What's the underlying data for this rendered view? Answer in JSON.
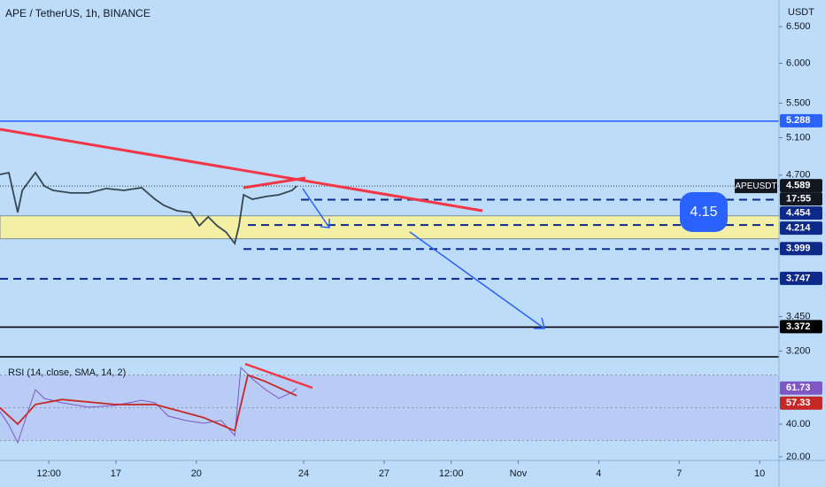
{
  "chart_data": [
    {
      "type": "line",
      "title": "APE / TetherUS, 1h, BINANCE",
      "axis_unit": "USDT",
      "symbol": "APEUSDT",
      "countdown": "17:55",
      "annotation": "4.15",
      "log_scale": true,
      "xlim": [
        12.68,
        41.72
      ],
      "ylim": [
        3.16,
        6.89
      ],
      "yticks": [
        {
          "value": 6.5,
          "label": "6.500"
        },
        {
          "value": 6,
          "label": "6.000"
        },
        {
          "value": 5.5,
          "label": "5.500"
        },
        {
          "value": 5.1,
          "label": "5.100"
        },
        {
          "value": 4.7,
          "label": "4.700"
        },
        {
          "value": 3.45,
          "label": "3.450"
        },
        {
          "value": 3.2,
          "label": "3.200"
        }
      ],
      "xticks": [
        {
          "value": 14.5,
          "label": "12:00"
        },
        17,
        20,
        24,
        27,
        {
          "value": 29.5,
          "label": "12:00"
        },
        {
          "value": 32,
          "label": "Nov"
        },
        {
          "value": 35,
          "label": "4"
        },
        {
          "value": 38,
          "label": "7"
        },
        {
          "value": 41,
          "label": "10"
        }
      ],
      "x": [
        12.68,
        13.01,
        13.34,
        13.51,
        14.0,
        14.33,
        14.66,
        15.32,
        15.98,
        16.64,
        17.3,
        17.96,
        18.46,
        18.79,
        19.28,
        19.78,
        20.11,
        20.44,
        20.77,
        21.1,
        21.43,
        21.59,
        21.76,
        22.09,
        22.58,
        23.08,
        23.57,
        23.74
      ],
      "series": [
        {
          "color": "#37474f",
          "values": [
            4.707,
            4.725,
            4.332,
            4.546,
            4.725,
            4.59,
            4.546,
            4.52,
            4.52,
            4.564,
            4.546,
            4.572,
            4.459,
            4.399,
            4.348,
            4.332,
            4.208,
            4.29,
            4.208,
            4.151,
            4.048,
            4.208,
            4.502,
            4.459,
            4.485,
            4.502,
            4.546,
            4.589
          ]
        }
      ],
      "zone": [
        4.09,
        4.3
      ],
      "zone_color": "#f3f0a6",
      "levels": [
        {
          "value": 5.288,
          "color": "#2962ff",
          "style": "solid"
        },
        {
          "value": 4.454,
          "color": "#0d2a8a",
          "style": "dashed"
        },
        {
          "value": 4.214,
          "color": "#0d2a8a",
          "style": "dashed"
        },
        {
          "value": 3.999,
          "color": "#0d2a8a",
          "style": "dashed"
        },
        {
          "value": 3.747,
          "color": "#0d2a8a",
          "style": "dashed"
        },
        {
          "value": 3.372,
          "color": "#000000",
          "style": "solid"
        }
      ]
    },
    {
      "type": "line",
      "title": "RSI (14, close, SMA, 14, 2)",
      "xlim": [
        12.68,
        41.72
      ],
      "ylim": [
        17.8,
        81.1
      ],
      "yticks": [
        {
          "value": 40,
          "label": "40.00"
        },
        {
          "value": 20,
          "label": "20.00"
        }
      ],
      "band": [
        30,
        70
      ],
      "guides": [
        70,
        50,
        30
      ],
      "series": [
        {
          "color": "#7e57c2",
          "x": [
            12.68,
            13.01,
            13.34,
            13.67,
            14.0,
            14.33,
            14.99,
            15.98,
            16.97,
            17.96,
            18.46,
            18.95,
            19.61,
            20.27,
            20.93,
            21.43,
            21.66,
            22.09,
            22.58,
            23.08,
            23.57,
            23.74
          ],
          "values": [
            47.6,
            39.5,
            28.6,
            44.9,
            61.1,
            55.7,
            53.0,
            50.3,
            51.4,
            54.6,
            53.0,
            44.9,
            42.2,
            40.5,
            42.2,
            33.0,
            74.6,
            67.6,
            61.1,
            55.7,
            59.5,
            61.73
          ]
        },
        {
          "color": "#c62828",
          "x": [
            12.68,
            13.34,
            14.0,
            14.99,
            16.97,
            18.46,
            20.27,
            21.43,
            21.92,
            22.58,
            23.74
          ],
          "values": [
            50,
            40,
            52,
            55,
            52,
            52,
            44,
            36,
            70,
            66,
            57.33
          ]
        }
      ]
    }
  ]
}
